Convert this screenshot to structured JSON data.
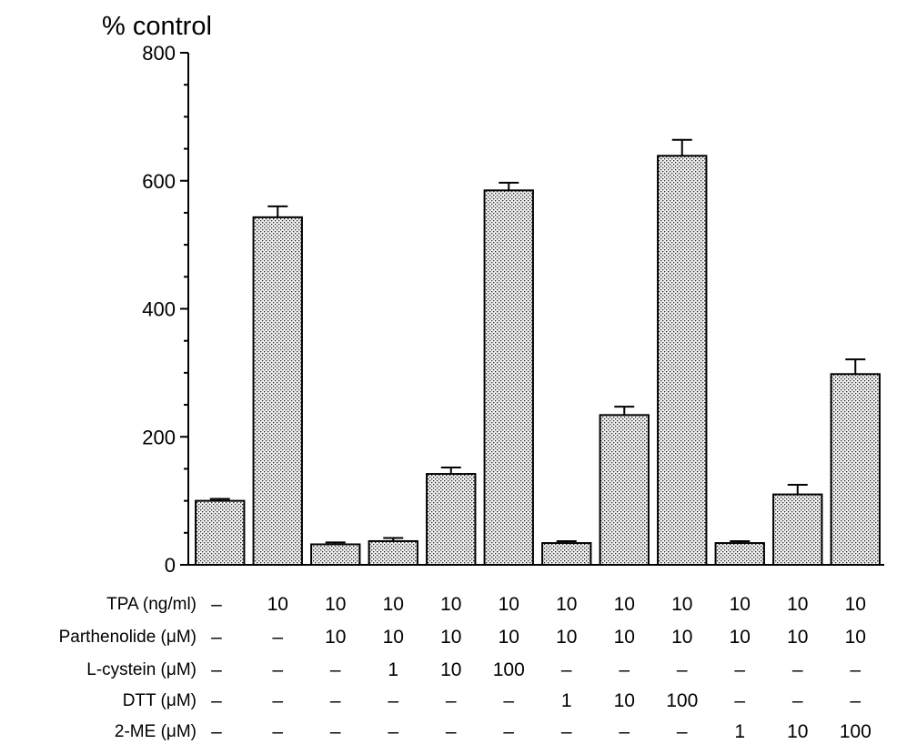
{
  "chart_data": {
    "type": "bar",
    "title": "",
    "ylabel": "% control",
    "xlabel": "",
    "ylim": [
      0,
      800
    ],
    "yticks": [
      0,
      200,
      400,
      600,
      800
    ],
    "ytick_labels": [
      "0",
      "200",
      "400",
      "600",
      "800"
    ],
    "grid": false,
    "fill_pattern": "stippled",
    "bars": [
      {
        "value": 100,
        "error": 3
      },
      {
        "value": 543,
        "error": 17
      },
      {
        "value": 32,
        "error": 3
      },
      {
        "value": 37,
        "error": 5
      },
      {
        "value": 142,
        "error": 10
      },
      {
        "value": 585,
        "error": 12
      },
      {
        "value": 34,
        "error": 3
      },
      {
        "value": 234,
        "error": 13
      },
      {
        "value": 639,
        "error": 25
      },
      {
        "value": 34,
        "error": 3
      },
      {
        "value": 110,
        "error": 15
      },
      {
        "value": 298,
        "error": 23
      }
    ],
    "conditions": [
      {
        "label": "TPA (ng/ml)",
        "values": [
          "–",
          "10",
          "10",
          "10",
          "10",
          "10",
          "10",
          "10",
          "10",
          "10",
          "10",
          "10"
        ]
      },
      {
        "label": "Parthenolide (μM)",
        "values": [
          "–",
          "–",
          "10",
          "10",
          "10",
          "10",
          "10",
          "10",
          "10",
          "10",
          "10",
          "10"
        ]
      },
      {
        "label": "L-cystein (μM)",
        "values": [
          "–",
          "–",
          "–",
          "1",
          "10",
          "100",
          "–",
          "–",
          "–",
          "–",
          "–",
          "–"
        ]
      },
      {
        "label": "DTT (μM)",
        "values": [
          "–",
          "–",
          "–",
          "–",
          "–",
          "–",
          "1",
          "10",
          "100",
          "–",
          "–",
          "–"
        ]
      },
      {
        "label": "2-ME (μM)",
        "values": [
          "–",
          "–",
          "–",
          "–",
          "–",
          "–",
          "–",
          "–",
          "–",
          "1",
          "10",
          "100"
        ]
      }
    ]
  }
}
